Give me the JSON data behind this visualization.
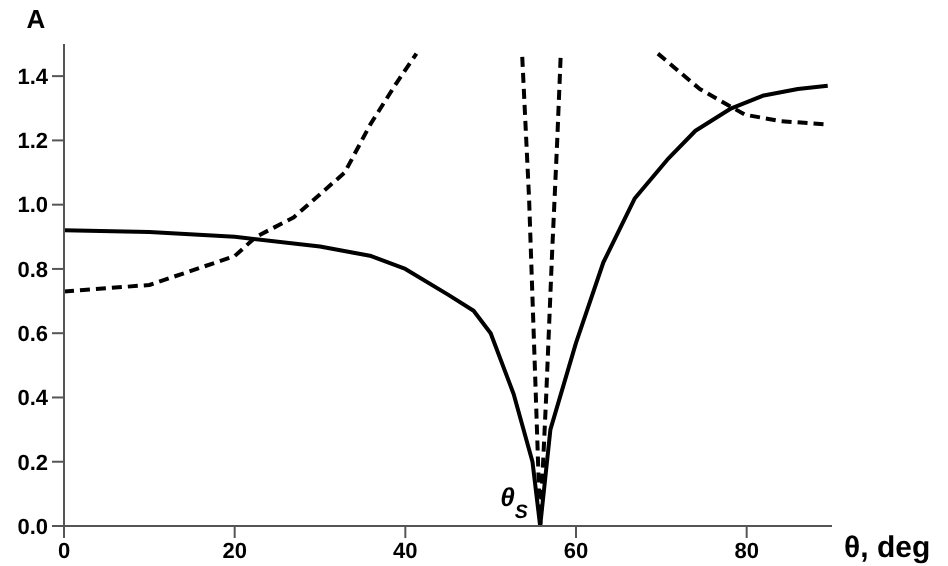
{
  "chart_data": {
    "type": "line",
    "xlabel": "θ, deg",
    "ylabel": "A",
    "xlim": [
      0,
      90
    ],
    "xticks": [
      0,
      20,
      40,
      60,
      80
    ],
    "ylim": [
      0,
      1.5
    ],
    "yticks": [
      {
        "value": 0,
        "label": "0.0"
      },
      {
        "value": 0.2,
        "label": "0.2"
      },
      {
        "value": 0.4,
        "label": "0.4"
      },
      {
        "value": 0.6,
        "label": "0.6"
      },
      {
        "value": 0.8,
        "label": "0.8"
      },
      {
        "value": 1,
        "label": "1.0"
      },
      {
        "value": 1.2,
        "label": "1.2"
      },
      {
        "value": 1.4,
        "label": "1.4"
      }
    ],
    "grid": false,
    "legend": false,
    "marker": "none",
    "series": [
      {
        "color": "#000000",
        "line_style": "solid",
        "x": [
          0,
          10,
          20,
          30,
          36,
          40,
          45,
          48,
          50,
          52.7,
          54.9,
          55.8,
          57,
          60,
          63.2,
          66.9,
          70.7,
          74,
          78.2,
          82,
          86,
          89.5
        ],
        "values": [
          0.92,
          0.915,
          0.9,
          0.87,
          0.84,
          0.8,
          0.72,
          0.67,
          0.6,
          0.41,
          0.2,
          0,
          0.3,
          0.57,
          0.82,
          1.02,
          1.14,
          1.23,
          1.3,
          1.34,
          1.36,
          1.37
        ]
      },
      {
        "color": "#000000",
        "line_style": "dashed",
        "x": [
          0,
          10,
          20,
          22.5,
          26.9,
          32.9,
          35.9,
          39,
          41.3,
          47,
          53.7,
          54.5,
          55.3,
          55.8,
          56.5,
          57.2,
          57.8,
          58.2,
          64,
          69.6,
          74.5,
          79.8,
          84,
          89.2
        ],
        "values": [
          0.73,
          0.75,
          0.84,
          0.9,
          0.96,
          1.1,
          1.25,
          1.38,
          1.47,
          null,
          1.46,
          1.02,
          0.4,
          0,
          0.4,
          0.85,
          1.2,
          1.46,
          null,
          1.47,
          1.36,
          1.28,
          1.26,
          1.25
        ]
      }
    ],
    "annotations": [
      {
        "text": "θ$_{S}$",
        "x": 56,
        "y": 0
      }
    ]
  }
}
